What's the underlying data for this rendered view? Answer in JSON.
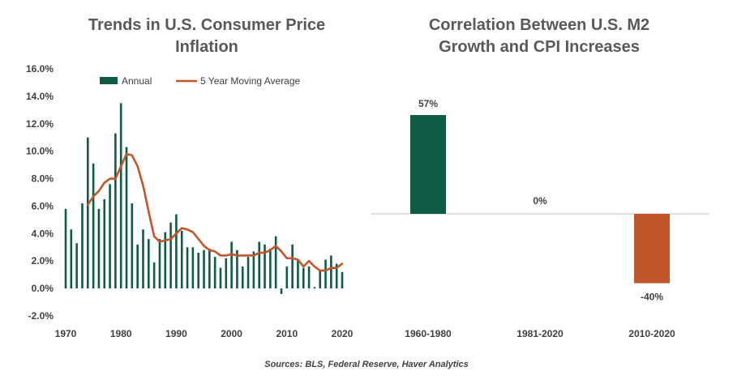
{
  "sources": "Sources: BLS, Federal Reserve,  Haver Analytics",
  "chart_data": [
    {
      "type": "bar",
      "title_lines": [
        "Trends in U.S. Consumer Price",
        "Inflation"
      ],
      "xlabel": "",
      "ylabel": "",
      "ylim": [
        -2,
        16
      ],
      "yticks": [
        -2,
        0,
        2,
        4,
        6,
        8,
        10,
        12,
        14,
        16
      ],
      "ytick_labels": [
        "-2.0%",
        "0.0%",
        "2.0%",
        "4.0%",
        "6.0%",
        "8.0%",
        "10.0%",
        "12.0%",
        "14.0%",
        "16.0%"
      ],
      "xticks": [
        1970,
        1980,
        1990,
        2000,
        2010,
        2020
      ],
      "xtick_labels": [
        "1970",
        "1980",
        "1990",
        "2000",
        "2010",
        "2020"
      ],
      "grid": false,
      "legend": "top",
      "colors": {
        "annual": "#0e5c45",
        "moving_average": "#c0562a"
      },
      "series": [
        {
          "name": "Annual",
          "kind": "bar",
          "x": [
            1970,
            1971,
            1972,
            1973,
            1974,
            1975,
            1976,
            1977,
            1978,
            1979,
            1980,
            1981,
            1982,
            1983,
            1984,
            1985,
            1986,
            1987,
            1988,
            1989,
            1990,
            1991,
            1992,
            1993,
            1994,
            1995,
            1996,
            1997,
            1998,
            1999,
            2000,
            2001,
            2002,
            2003,
            2004,
            2005,
            2006,
            2007,
            2008,
            2009,
            2010,
            2011,
            2012,
            2013,
            2014,
            2015,
            2016,
            2017,
            2018,
            2019,
            2020
          ],
          "values": [
            5.8,
            4.3,
            3.3,
            6.2,
            11.0,
            9.1,
            5.8,
            6.5,
            7.6,
            11.3,
            13.5,
            10.3,
            6.2,
            3.2,
            4.3,
            3.6,
            1.9,
            3.6,
            4.1,
            4.8,
            5.4,
            4.2,
            3.0,
            3.0,
            2.6,
            2.8,
            2.9,
            2.3,
            1.5,
            2.2,
            3.4,
            2.8,
            1.6,
            2.3,
            2.7,
            3.4,
            3.2,
            2.9,
            3.8,
            -0.4,
            1.6,
            3.2,
            2.1,
            1.5,
            1.6,
            0.1,
            1.3,
            2.1,
            2.4,
            1.8,
            1.2
          ]
        },
        {
          "name": "5 Year Moving Average",
          "kind": "line",
          "x": [
            1974,
            1975,
            1976,
            1977,
            1978,
            1979,
            1980,
            1981,
            1982,
            1983,
            1984,
            1985,
            1986,
            1987,
            1988,
            1989,
            1990,
            1991,
            1992,
            1993,
            1994,
            1995,
            1996,
            1997,
            1998,
            1999,
            2000,
            2001,
            2002,
            2003,
            2004,
            2005,
            2006,
            2007,
            2008,
            2009,
            2010,
            2011,
            2012,
            2013,
            2014,
            2015,
            2016,
            2017,
            2018,
            2019,
            2020
          ],
          "values": [
            6.1,
            6.7,
            7.1,
            7.7,
            8.0,
            8.0,
            8.9,
            9.8,
            9.7,
            8.9,
            7.5,
            5.6,
            3.8,
            3.4,
            3.5,
            3.6,
            4.0,
            4.4,
            4.3,
            4.1,
            3.6,
            3.1,
            2.8,
            2.7,
            2.4,
            2.4,
            2.5,
            2.4,
            2.4,
            2.4,
            2.4,
            2.6,
            2.6,
            2.8,
            3.1,
            2.7,
            2.2,
            2.2,
            2.1,
            1.6,
            2.0,
            1.6,
            1.3,
            1.3,
            1.5,
            1.5,
            1.8
          ]
        }
      ]
    },
    {
      "type": "bar",
      "title_lines": [
        "Correlation Between U.S. M2",
        "Growth and CPI Increases"
      ],
      "xlabel": "",
      "ylabel": "",
      "ylim": [
        -45,
        65
      ],
      "categories": [
        "1960-1980",
        "1981-2020",
        "2010-2020"
      ],
      "values": [
        57,
        0,
        -40
      ],
      "data_labels": [
        "57%",
        "0%",
        "-40%"
      ],
      "bar_colors": [
        "#0e5c45",
        "#0e5c45",
        "#c0562a"
      ],
      "axis_color": "#bfbfbf",
      "grid": false
    }
  ]
}
